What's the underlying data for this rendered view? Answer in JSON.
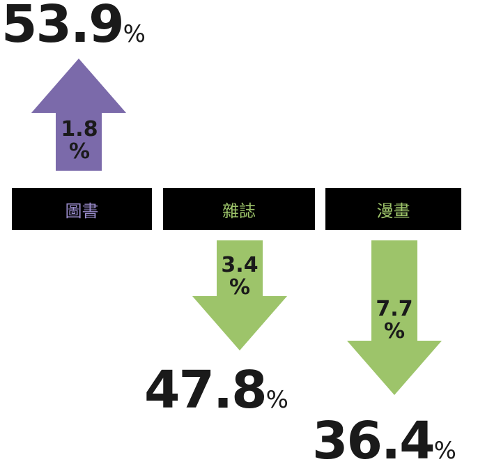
{
  "colors": {
    "up": "#7b6aaa",
    "down": "#9dc46a",
    "label_bg": "#000000",
    "text": "#1a1a1a"
  },
  "chart_data": {
    "type": "bar",
    "categories": [
      "圖書",
      "雜誌",
      "漫畫"
    ],
    "series": [
      {
        "values": [
          53.9,
          47.8,
          36.4
        ]
      }
    ],
    "unit": "%",
    "changes": [
      {
        "value": "1.8",
        "unit": "%",
        "direction": "up"
      },
      {
        "value": "3.4",
        "unit": "%",
        "direction": "down"
      },
      {
        "value": "7.7",
        "unit": "%",
        "direction": "down"
      }
    ],
    "title": "",
    "xlabel": "",
    "ylabel": ""
  }
}
